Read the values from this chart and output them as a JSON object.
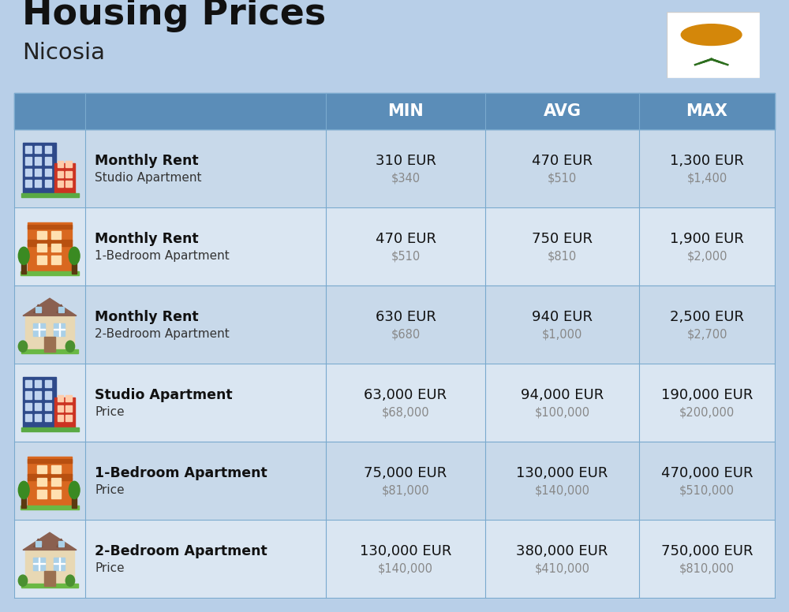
{
  "title": "Housing Prices",
  "subtitle": "Nicosia",
  "bg_color": "#b8cfe8",
  "header_bg": "#5b8db8",
  "header_text_color": "#ffffff",
  "row_bg_odd": "#c8d9ea",
  "row_bg_even": "#dae6f2",
  "cell_border_color": "#7aaace",
  "columns": [
    "MIN",
    "AVG",
    "MAX"
  ],
  "rows": [
    {
      "label_bold": "Monthly Rent",
      "label_sub": "Studio Apartment",
      "icon": "studio_blue",
      "min_eur": "310 EUR",
      "min_usd": "$340",
      "avg_eur": "470 EUR",
      "avg_usd": "$510",
      "max_eur": "1,300 EUR",
      "max_usd": "$1,400"
    },
    {
      "label_bold": "Monthly Rent",
      "label_sub": "1-Bedroom Apartment",
      "icon": "apartment_orange",
      "min_eur": "470 EUR",
      "min_usd": "$510",
      "avg_eur": "750 EUR",
      "avg_usd": "$810",
      "max_eur": "1,900 EUR",
      "max_usd": "$2,000"
    },
    {
      "label_bold": "Monthly Rent",
      "label_sub": "2-Bedroom Apartment",
      "icon": "house_tan",
      "min_eur": "630 EUR",
      "min_usd": "$680",
      "avg_eur": "940 EUR",
      "avg_usd": "$1,000",
      "max_eur": "2,500 EUR",
      "max_usd": "$2,700"
    },
    {
      "label_bold": "Studio Apartment",
      "label_sub": "Price",
      "icon": "studio_blue",
      "min_eur": "63,000 EUR",
      "min_usd": "$68,000",
      "avg_eur": "94,000 EUR",
      "avg_usd": "$100,000",
      "max_eur": "190,000 EUR",
      "max_usd": "$200,000"
    },
    {
      "label_bold": "1-Bedroom Apartment",
      "label_sub": "Price",
      "icon": "apartment_orange",
      "min_eur": "75,000 EUR",
      "min_usd": "$81,000",
      "avg_eur": "130,000 EUR",
      "avg_usd": "$140,000",
      "max_eur": "470,000 EUR",
      "max_usd": "$510,000"
    },
    {
      "label_bold": "2-Bedroom Apartment",
      "label_sub": "Price",
      "icon": "house_tan",
      "min_eur": "130,000 EUR",
      "min_usd": "$140,000",
      "avg_eur": "380,000 EUR",
      "avg_usd": "$410,000",
      "max_eur": "750,000 EUR",
      "max_usd": "$810,000"
    }
  ]
}
